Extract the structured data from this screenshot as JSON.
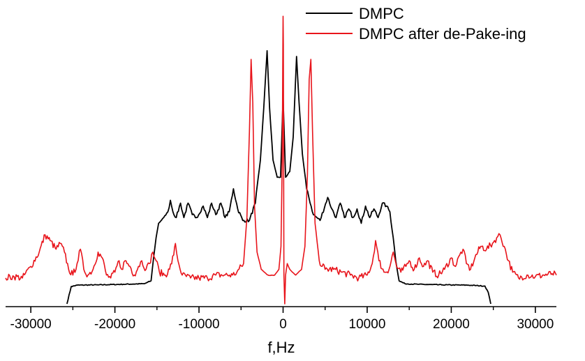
{
  "chart_data": {
    "type": "line",
    "title": "",
    "xlabel": "f,Hz",
    "ylabel": "",
    "xlim": [
      -33000,
      32500
    ],
    "ylim": [
      0,
      1.02
    ],
    "x_ticks": [
      -30000,
      -20000,
      -10000,
      0,
      10000,
      20000,
      30000
    ],
    "x_tick_labels": [
      "-30000",
      "-20000",
      "-10000",
      "0",
      "10000",
      "20000",
      "30000"
    ],
    "grid": false,
    "legend_position": "top-right",
    "series": [
      {
        "name": "DMPC",
        "color": "#000000",
        "points": [
          [
            -25700,
            0.0
          ],
          [
            -25200,
            0.06
          ],
          [
            -24500,
            0.065
          ],
          [
            -22000,
            0.066
          ],
          [
            -19000,
            0.068
          ],
          [
            -16500,
            0.07
          ],
          [
            -15700,
            0.08
          ],
          [
            -15400,
            0.16
          ],
          [
            -15100,
            0.23
          ],
          [
            -14800,
            0.28
          ],
          [
            -14200,
            0.3
          ],
          [
            -13700,
            0.32
          ],
          [
            -13400,
            0.36
          ],
          [
            -13100,
            0.32
          ],
          [
            -12700,
            0.3
          ],
          [
            -12200,
            0.35
          ],
          [
            -11800,
            0.3
          ],
          [
            -11300,
            0.35
          ],
          [
            -10800,
            0.31
          ],
          [
            -10300,
            0.3
          ],
          [
            -9500,
            0.34
          ],
          [
            -9000,
            0.3
          ],
          [
            -8500,
            0.35
          ],
          [
            -8000,
            0.31
          ],
          [
            -7400,
            0.35
          ],
          [
            -6900,
            0.3
          ],
          [
            -6400,
            0.32
          ],
          [
            -5900,
            0.4
          ],
          [
            -5400,
            0.33
          ],
          [
            -4800,
            0.29
          ],
          [
            -4000,
            0.29
          ],
          [
            -3300,
            0.35
          ],
          [
            -2700,
            0.5
          ],
          [
            -2300,
            0.68
          ],
          [
            -1900,
            0.88
          ],
          [
            -1600,
            0.68
          ],
          [
            -1200,
            0.5
          ],
          [
            -700,
            0.44
          ],
          [
            -300,
            0.44
          ],
          [
            0,
            0.72
          ],
          [
            300,
            0.44
          ],
          [
            800,
            0.46
          ],
          [
            1200,
            0.58
          ],
          [
            1400,
            0.72
          ],
          [
            1600,
            0.86
          ],
          [
            1900,
            0.7
          ],
          [
            2300,
            0.52
          ],
          [
            2800,
            0.4
          ],
          [
            3600,
            0.31
          ],
          [
            4400,
            0.29
          ],
          [
            5300,
            0.37
          ],
          [
            5800,
            0.33
          ],
          [
            6300,
            0.3
          ],
          [
            6800,
            0.35
          ],
          [
            7300,
            0.3
          ],
          [
            7800,
            0.33
          ],
          [
            8300,
            0.3
          ],
          [
            8800,
            0.33
          ],
          [
            9300,
            0.28
          ],
          [
            9800,
            0.34
          ],
          [
            10300,
            0.3
          ],
          [
            10800,
            0.33
          ],
          [
            11300,
            0.3
          ],
          [
            11800,
            0.35
          ],
          [
            12300,
            0.34
          ],
          [
            12700,
            0.32
          ],
          [
            13100,
            0.23
          ],
          [
            13400,
            0.15
          ],
          [
            13800,
            0.08
          ],
          [
            14500,
            0.07
          ],
          [
            16000,
            0.068
          ],
          [
            19000,
            0.066
          ],
          [
            22000,
            0.065
          ],
          [
            24000,
            0.062
          ],
          [
            24400,
            0.04
          ],
          [
            24700,
            0.0
          ]
        ]
      },
      {
        "name": "DMPC after de-Pake-ing",
        "color": "#e8141b",
        "points": [
          [
            -33000,
            0.09
          ],
          [
            -32000,
            0.095
          ],
          [
            -31000,
            0.09
          ],
          [
            -30000,
            0.13
          ],
          [
            -29000,
            0.18
          ],
          [
            -28300,
            0.24
          ],
          [
            -27700,
            0.22
          ],
          [
            -27000,
            0.19
          ],
          [
            -26500,
            0.21
          ],
          [
            -26000,
            0.18
          ],
          [
            -25500,
            0.12
          ],
          [
            -25000,
            0.1
          ],
          [
            -24500,
            0.14
          ],
          [
            -24100,
            0.19
          ],
          [
            -23700,
            0.12
          ],
          [
            -23200,
            0.1
          ],
          [
            -22600,
            0.12
          ],
          [
            -22000,
            0.18
          ],
          [
            -21500,
            0.16
          ],
          [
            -21000,
            0.1
          ],
          [
            -20500,
            0.09
          ],
          [
            -20000,
            0.11
          ],
          [
            -19500,
            0.15
          ],
          [
            -19200,
            0.12
          ],
          [
            -18800,
            0.15
          ],
          [
            -18200,
            0.13
          ],
          [
            -17700,
            0.1
          ],
          [
            -17200,
            0.13
          ],
          [
            -16800,
            0.15
          ],
          [
            -16300,
            0.12
          ],
          [
            -15900,
            0.14
          ],
          [
            -15500,
            0.18
          ],
          [
            -15100,
            0.15
          ],
          [
            -14700,
            0.11
          ],
          [
            -14000,
            0.1
          ],
          [
            -13500,
            0.12
          ],
          [
            -13000,
            0.17
          ],
          [
            -12800,
            0.21
          ],
          [
            -12500,
            0.15
          ],
          [
            -12000,
            0.1
          ],
          [
            -11000,
            0.09
          ],
          [
            -10000,
            0.09
          ],
          [
            -9000,
            0.09
          ],
          [
            -8000,
            0.1
          ],
          [
            -7000,
            0.1
          ],
          [
            -6000,
            0.1
          ],
          [
            -5500,
            0.11
          ],
          [
            -4700,
            0.14
          ],
          [
            -4300,
            0.3
          ],
          [
            -4000,
            0.6
          ],
          [
            -3800,
            0.85
          ],
          [
            -3600,
            0.7
          ],
          [
            -3400,
            0.34
          ],
          [
            -3100,
            0.18
          ],
          [
            -2600,
            0.12
          ],
          [
            -1800,
            0.1
          ],
          [
            -1000,
            0.1
          ],
          [
            -500,
            0.12
          ],
          [
            -250,
            0.2
          ],
          [
            -100,
            0.5
          ],
          [
            -30,
            0.9
          ],
          [
            0,
            1.0
          ],
          [
            30,
            0.9
          ],
          [
            100,
            0.1
          ],
          [
            200,
            0.0
          ],
          [
            300,
            0.1
          ],
          [
            500,
            0.14
          ],
          [
            800,
            0.12
          ],
          [
            1500,
            0.1
          ],
          [
            2200,
            0.12
          ],
          [
            2600,
            0.2
          ],
          [
            2900,
            0.45
          ],
          [
            3100,
            0.78
          ],
          [
            3300,
            0.85
          ],
          [
            3500,
            0.6
          ],
          [
            3800,
            0.28
          ],
          [
            4300,
            0.15
          ],
          [
            5000,
            0.12
          ],
          [
            6000,
            0.12
          ],
          [
            7000,
            0.11
          ],
          [
            8000,
            0.1
          ],
          [
            9000,
            0.09
          ],
          [
            10000,
            0.1
          ],
          [
            10600,
            0.14
          ],
          [
            11000,
            0.22
          ],
          [
            11400,
            0.15
          ],
          [
            12000,
            0.11
          ],
          [
            12600,
            0.12
          ],
          [
            13100,
            0.18
          ],
          [
            13500,
            0.13
          ],
          [
            14000,
            0.11
          ],
          [
            14600,
            0.13
          ],
          [
            15000,
            0.15
          ],
          [
            15600,
            0.12
          ],
          [
            16200,
            0.16
          ],
          [
            16700,
            0.13
          ],
          [
            17200,
            0.15
          ],
          [
            17800,
            0.11
          ],
          [
            18500,
            0.1
          ],
          [
            19200,
            0.12
          ],
          [
            20000,
            0.16
          ],
          [
            20500,
            0.13
          ],
          [
            21000,
            0.17
          ],
          [
            21400,
            0.19
          ],
          [
            21800,
            0.14
          ],
          [
            22300,
            0.12
          ],
          [
            22800,
            0.16
          ],
          [
            23500,
            0.2
          ],
          [
            24200,
            0.19
          ],
          [
            24900,
            0.21
          ],
          [
            25400,
            0.23
          ],
          [
            25800,
            0.24
          ],
          [
            26300,
            0.2
          ],
          [
            26800,
            0.15
          ],
          [
            27300,
            0.11
          ],
          [
            28000,
            0.09
          ],
          [
            29000,
            0.1
          ],
          [
            30000,
            0.095
          ],
          [
            31000,
            0.1
          ],
          [
            32000,
            0.105
          ],
          [
            32500,
            0.1
          ]
        ]
      }
    ]
  }
}
